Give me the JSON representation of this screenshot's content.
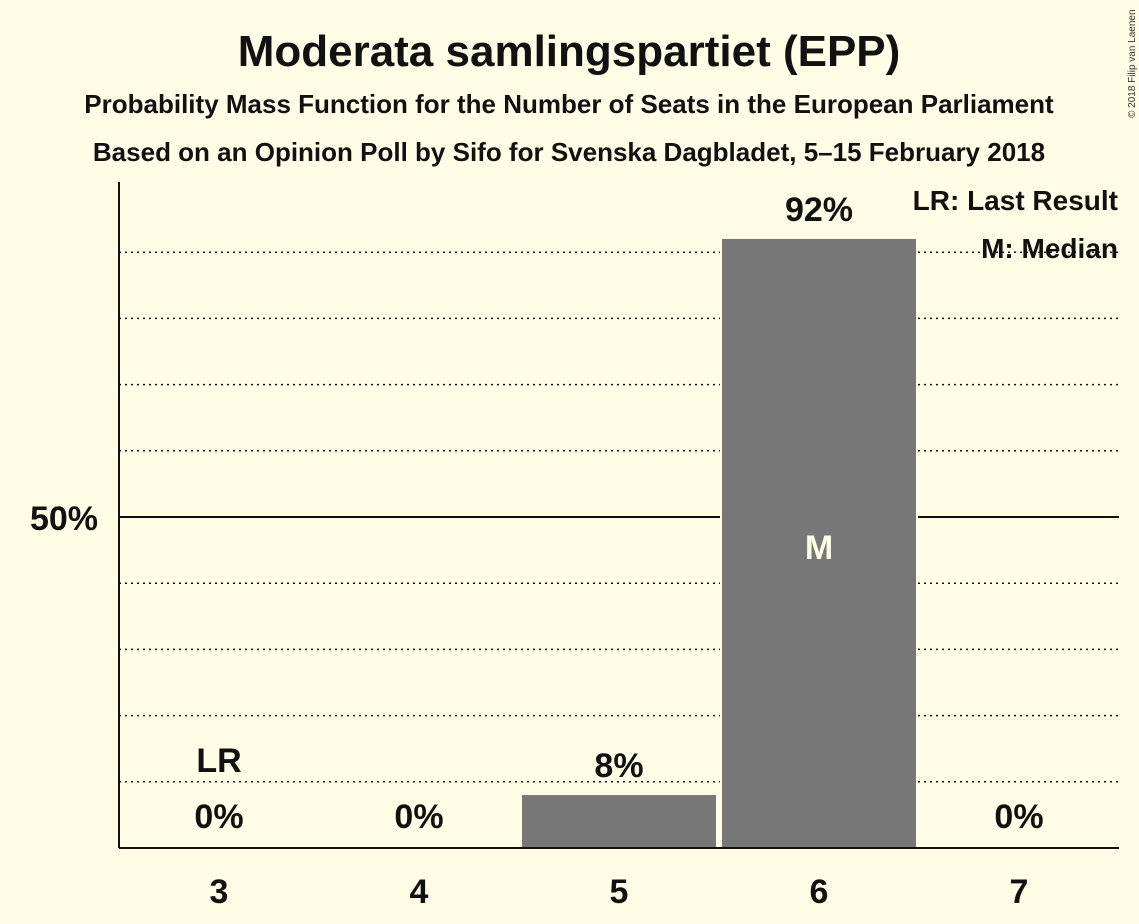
{
  "chart_data": {
    "type": "bar",
    "title": "Moderata samlingspartiet (EPP)",
    "subtitle": "Probability Mass Function for the Number of Seats in the European Parliament",
    "subtitle2": "Based on an Opinion Poll by Sifo for Svenska Dagbladet, 5–15 February 2018",
    "copyright": "© 2018 Filip van Laenen",
    "categories": [
      "3",
      "4",
      "5",
      "6",
      "7"
    ],
    "values": [
      0,
      0,
      8,
      92,
      0
    ],
    "value_labels": [
      "0%",
      "0%",
      "8%",
      "92%",
      "0%"
    ],
    "ylim": [
      0,
      100
    ],
    "y_tick_label": "50%",
    "y_tick_value": 50,
    "grid_step": 10,
    "last_result_category": "3",
    "last_result_marker": "LR",
    "median_category": "6",
    "median_marker": "M",
    "legend": {
      "placement": "top-right",
      "items": [
        "LR: Last Result",
        "M: Median"
      ]
    },
    "colors": {
      "background": "#fffde6",
      "bar": "#777777",
      "axis": "#111111"
    }
  }
}
